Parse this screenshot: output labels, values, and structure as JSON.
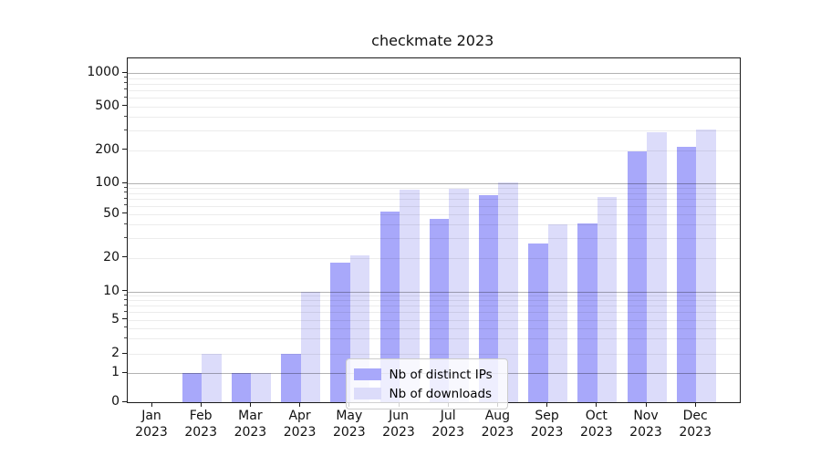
{
  "title": "checkmate 2023",
  "legend": {
    "items": [
      {
        "label": "Nb of distinct IPs"
      },
      {
        "label": "Nb of downloads"
      }
    ]
  },
  "chart_data": {
    "type": "bar",
    "title": "checkmate 2023",
    "categories": [
      "Jan 2023",
      "Feb 2023",
      "Mar 2023",
      "Apr 2023",
      "May 2023",
      "Jun 2023",
      "Jul 2023",
      "Aug 2023",
      "Sep 2023",
      "Oct 2023",
      "Nov 2023",
      "Dec 2023"
    ],
    "x_tick_line1": [
      "Jan",
      "Feb",
      "Mar",
      "Apr",
      "May",
      "Jun",
      "Jul",
      "Aug",
      "Sep",
      "Oct",
      "Nov",
      "Dec"
    ],
    "x_tick_line2": "2023",
    "series": [
      {
        "name": "Nb of distinct IPs",
        "color": "#a8a8fa",
        "values": [
          0,
          1,
          1,
          2,
          18,
          53,
          45,
          76,
          27,
          41,
          195,
          213
        ]
      },
      {
        "name": "Nb of downloads",
        "color": "#dcdcfa",
        "values": [
          0,
          2,
          1,
          10,
          21,
          87,
          89,
          102,
          40,
          73,
          292,
          310
        ]
      }
    ],
    "yscale": "symlog",
    "y_ticks": [
      0,
      1,
      2,
      5,
      10,
      20,
      50,
      100,
      200,
      500,
      1000
    ],
    "y_tick_labels": [
      "0",
      "1",
      "2",
      "5",
      "10",
      "20",
      "50",
      "100",
      "200",
      "500",
      "1000"
    ],
    "ylim": [
      0,
      1400
    ],
    "grid": "horizontal-log-minor",
    "legend_position": "inside lower-center",
    "bar_layout": "two bars per month, side by side, centered on month tick"
  }
}
